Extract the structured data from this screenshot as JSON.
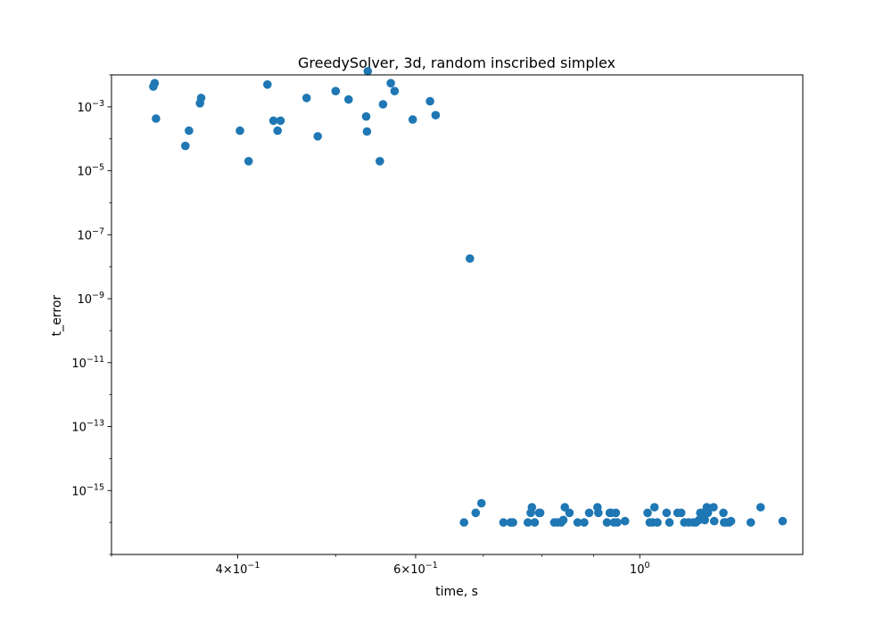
{
  "chart_data": {
    "type": "scatter",
    "title": "GreedySolver, 3d, random inscribed simplex",
    "xlabel": "time, s",
    "ylabel": "t_error",
    "xscale": "log",
    "yscale": "log",
    "xlim": [
      0.3,
      1.45
    ],
    "ylim": [
      1e-17,
      0.01
    ],
    "grid": false,
    "color": "#1f77b4",
    "x_ticks": [
      {
        "value": 0.4,
        "mantissa": "4",
        "base": "10",
        "exp": "−1"
      },
      {
        "value": 0.6,
        "mantissa": "6",
        "base": "10",
        "exp": "−1"
      },
      {
        "value": 1.0,
        "mantissa": "",
        "base": "10",
        "exp": "0"
      }
    ],
    "x_minor_ticks": [
      0.3,
      0.5,
      0.7,
      0.8,
      0.9
    ],
    "y_ticks": [
      {
        "value": 0.001,
        "base": "10",
        "exp": "−3"
      },
      {
        "value": 1e-05,
        "base": "10",
        "exp": "−5"
      },
      {
        "value": 1e-07,
        "base": "10",
        "exp": "−7"
      },
      {
        "value": 1e-09,
        "base": "10",
        "exp": "−9"
      },
      {
        "value": 1e-11,
        "base": "10",
        "exp": "−11"
      },
      {
        "value": 1e-13,
        "base": "10",
        "exp": "−13"
      },
      {
        "value": 1e-15,
        "base": "10",
        "exp": "−15"
      }
    ],
    "points": [
      [
        0.331,
        0.0055
      ],
      [
        0.33,
        0.0043
      ],
      [
        0.332,
        0.00043
      ],
      [
        0.355,
        6e-05
      ],
      [
        0.358,
        0.00018
      ],
      [
        0.367,
        0.0013
      ],
      [
        0.368,
        0.0019
      ],
      [
        0.402,
        0.00018
      ],
      [
        0.41,
        2e-05
      ],
      [
        0.428,
        0.005
      ],
      [
        0.434,
        0.00037
      ],
      [
        0.438,
        0.00018
      ],
      [
        0.441,
        0.00037
      ],
      [
        0.468,
        0.0019
      ],
      [
        0.48,
        0.00012
      ],
      [
        0.5,
        0.0031
      ],
      [
        0.515,
        0.0017
      ],
      [
        0.538,
        0.013
      ],
      [
        0.536,
        0.0005
      ],
      [
        0.537,
        0.00017
      ],
      [
        0.553,
        2e-05
      ],
      [
        0.557,
        0.0012
      ],
      [
        0.567,
        0.0055
      ],
      [
        0.572,
        0.0031
      ],
      [
        0.596,
        0.0004
      ],
      [
        0.62,
        0.0015
      ],
      [
        0.628,
        0.00055
      ],
      [
        0.679,
        1.8e-08
      ],
      [
        0.67,
        1e-16
      ],
      [
        0.688,
        2e-16
      ],
      [
        0.697,
        4e-16
      ],
      [
        0.733,
        1e-16
      ],
      [
        0.745,
        1e-16
      ],
      [
        0.749,
        1e-16
      ],
      [
        0.775,
        1e-16
      ],
      [
        0.78,
        2e-16
      ],
      [
        0.782,
        3e-16
      ],
      [
        0.787,
        1e-16
      ],
      [
        0.795,
        2e-16
      ],
      [
        0.797,
        2e-16
      ],
      [
        0.823,
        1e-16
      ],
      [
        0.829,
        1e-16
      ],
      [
        0.836,
        1e-16
      ],
      [
        0.84,
        1.2e-16
      ],
      [
        0.843,
        3e-16
      ],
      [
        0.852,
        2e-16
      ],
      [
        0.868,
        1e-16
      ],
      [
        0.881,
        1e-16
      ],
      [
        0.891,
        2e-16
      ],
      [
        0.908,
        3e-16
      ],
      [
        0.91,
        2e-16
      ],
      [
        0.928,
        1e-16
      ],
      [
        0.934,
        2e-16
      ],
      [
        0.937,
        2e-16
      ],
      [
        0.943,
        1e-16
      ],
      [
        0.947,
        2e-16
      ],
      [
        0.95,
        1e-16
      ],
      [
        0.967,
        1.1e-16
      ],
      [
        1.018,
        2e-16
      ],
      [
        1.023,
        1e-16
      ],
      [
        1.03,
        1e-16
      ],
      [
        1.034,
        3e-16
      ],
      [
        1.041,
        1e-16
      ],
      [
        1.063,
        2e-16
      ],
      [
        1.07,
        1e-16
      ],
      [
        1.09,
        2e-16
      ],
      [
        1.099,
        2e-16
      ],
      [
        1.107,
        1e-16
      ],
      [
        1.118,
        1e-16
      ],
      [
        1.13,
        1e-16
      ],
      [
        1.136,
        1e-16
      ],
      [
        1.145,
        1.2e-16
      ],
      [
        1.148,
        2e-16
      ],
      [
        1.155,
        2e-16
      ],
      [
        1.16,
        1.2e-16
      ],
      [
        1.163,
        2e-16
      ],
      [
        1.165,
        3e-16
      ],
      [
        1.168,
        2e-16
      ],
      [
        1.183,
        3e-16
      ],
      [
        1.185,
        1.1e-16
      ],
      [
        1.21,
        2e-16
      ],
      [
        1.212,
        1e-16
      ],
      [
        1.219,
        1e-16
      ],
      [
        1.226,
        1e-16
      ],
      [
        1.231,
        1.1e-16
      ],
      [
        1.288,
        1e-16
      ],
      [
        1.317,
        3e-16
      ],
      [
        1.385,
        1.1e-16
      ]
    ]
  }
}
